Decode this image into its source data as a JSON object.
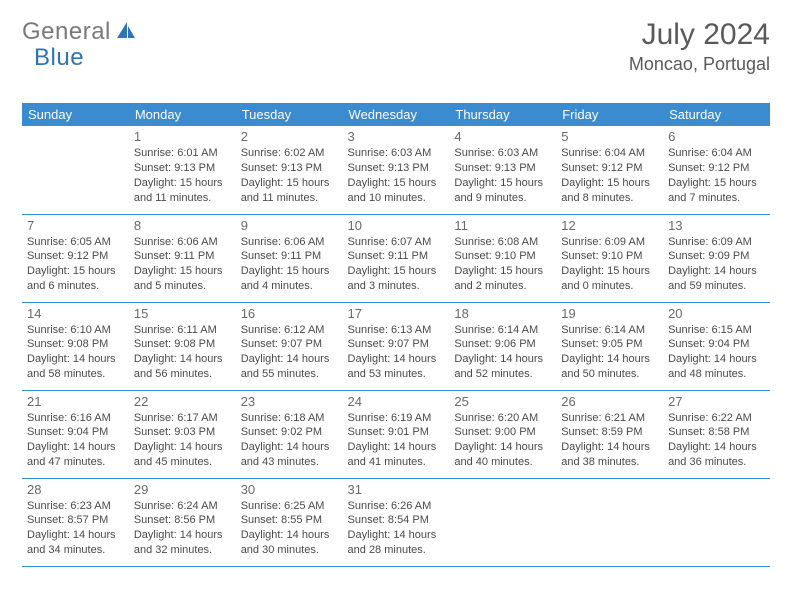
{
  "brand": {
    "part1": "General",
    "part2": "Blue"
  },
  "title": "July 2024",
  "location": "Moncao, Portugal",
  "colors": {
    "header_bg": "#3a8bd0",
    "header_text": "#ffffff",
    "shaded_bg": "#ececec",
    "rule": "#3a8bd0",
    "logo_gray": "#7a7a7a",
    "logo_blue": "#2f75b5"
  },
  "dayHeaders": [
    "Sunday",
    "Monday",
    "Tuesday",
    "Wednesday",
    "Thursday",
    "Friday",
    "Saturday"
  ],
  "weeks": [
    [
      {
        "num": "",
        "sr": "",
        "ss": "",
        "dl1": "",
        "dl2": "",
        "shaded": true
      },
      {
        "num": "1",
        "sr": "Sunrise: 6:01 AM",
        "ss": "Sunset: 9:13 PM",
        "dl1": "Daylight: 15 hours",
        "dl2": "and 11 minutes.",
        "shaded": true
      },
      {
        "num": "2",
        "sr": "Sunrise: 6:02 AM",
        "ss": "Sunset: 9:13 PM",
        "dl1": "Daylight: 15 hours",
        "dl2": "and 11 minutes.",
        "shaded": true
      },
      {
        "num": "3",
        "sr": "Sunrise: 6:03 AM",
        "ss": "Sunset: 9:13 PM",
        "dl1": "Daylight: 15 hours",
        "dl2": "and 10 minutes.",
        "shaded": true
      },
      {
        "num": "4",
        "sr": "Sunrise: 6:03 AM",
        "ss": "Sunset: 9:13 PM",
        "dl1": "Daylight: 15 hours",
        "dl2": "and 9 minutes.",
        "shaded": true
      },
      {
        "num": "5",
        "sr": "Sunrise: 6:04 AM",
        "ss": "Sunset: 9:12 PM",
        "dl1": "Daylight: 15 hours",
        "dl2": "and 8 minutes.",
        "shaded": true
      },
      {
        "num": "6",
        "sr": "Sunrise: 6:04 AM",
        "ss": "Sunset: 9:12 PM",
        "dl1": "Daylight: 15 hours",
        "dl2": "and 7 minutes.",
        "shaded": true
      }
    ],
    [
      {
        "num": "7",
        "sr": "Sunrise: 6:05 AM",
        "ss": "Sunset: 9:12 PM",
        "dl1": "Daylight: 15 hours",
        "dl2": "and 6 minutes.",
        "shaded": false
      },
      {
        "num": "8",
        "sr": "Sunrise: 6:06 AM",
        "ss": "Sunset: 9:11 PM",
        "dl1": "Daylight: 15 hours",
        "dl2": "and 5 minutes.",
        "shaded": false
      },
      {
        "num": "9",
        "sr": "Sunrise: 6:06 AM",
        "ss": "Sunset: 9:11 PM",
        "dl1": "Daylight: 15 hours",
        "dl2": "and 4 minutes.",
        "shaded": false
      },
      {
        "num": "10",
        "sr": "Sunrise: 6:07 AM",
        "ss": "Sunset: 9:11 PM",
        "dl1": "Daylight: 15 hours",
        "dl2": "and 3 minutes.",
        "shaded": false
      },
      {
        "num": "11",
        "sr": "Sunrise: 6:08 AM",
        "ss": "Sunset: 9:10 PM",
        "dl1": "Daylight: 15 hours",
        "dl2": "and 2 minutes.",
        "shaded": false
      },
      {
        "num": "12",
        "sr": "Sunrise: 6:09 AM",
        "ss": "Sunset: 9:10 PM",
        "dl1": "Daylight: 15 hours",
        "dl2": "and 0 minutes.",
        "shaded": false
      },
      {
        "num": "13",
        "sr": "Sunrise: 6:09 AM",
        "ss": "Sunset: 9:09 PM",
        "dl1": "Daylight: 14 hours",
        "dl2": "and 59 minutes.",
        "shaded": false
      }
    ],
    [
      {
        "num": "14",
        "sr": "Sunrise: 6:10 AM",
        "ss": "Sunset: 9:08 PM",
        "dl1": "Daylight: 14 hours",
        "dl2": "and 58 minutes.",
        "shaded": true
      },
      {
        "num": "15",
        "sr": "Sunrise: 6:11 AM",
        "ss": "Sunset: 9:08 PM",
        "dl1": "Daylight: 14 hours",
        "dl2": "and 56 minutes.",
        "shaded": true
      },
      {
        "num": "16",
        "sr": "Sunrise: 6:12 AM",
        "ss": "Sunset: 9:07 PM",
        "dl1": "Daylight: 14 hours",
        "dl2": "and 55 minutes.",
        "shaded": true
      },
      {
        "num": "17",
        "sr": "Sunrise: 6:13 AM",
        "ss": "Sunset: 9:07 PM",
        "dl1": "Daylight: 14 hours",
        "dl2": "and 53 minutes.",
        "shaded": true
      },
      {
        "num": "18",
        "sr": "Sunrise: 6:14 AM",
        "ss": "Sunset: 9:06 PM",
        "dl1": "Daylight: 14 hours",
        "dl2": "and 52 minutes.",
        "shaded": true
      },
      {
        "num": "19",
        "sr": "Sunrise: 6:14 AM",
        "ss": "Sunset: 9:05 PM",
        "dl1": "Daylight: 14 hours",
        "dl2": "and 50 minutes.",
        "shaded": true
      },
      {
        "num": "20",
        "sr": "Sunrise: 6:15 AM",
        "ss": "Sunset: 9:04 PM",
        "dl1": "Daylight: 14 hours",
        "dl2": "and 48 minutes.",
        "shaded": true
      }
    ],
    [
      {
        "num": "21",
        "sr": "Sunrise: 6:16 AM",
        "ss": "Sunset: 9:04 PM",
        "dl1": "Daylight: 14 hours",
        "dl2": "and 47 minutes.",
        "shaded": false
      },
      {
        "num": "22",
        "sr": "Sunrise: 6:17 AM",
        "ss": "Sunset: 9:03 PM",
        "dl1": "Daylight: 14 hours",
        "dl2": "and 45 minutes.",
        "shaded": false
      },
      {
        "num": "23",
        "sr": "Sunrise: 6:18 AM",
        "ss": "Sunset: 9:02 PM",
        "dl1": "Daylight: 14 hours",
        "dl2": "and 43 minutes.",
        "shaded": false
      },
      {
        "num": "24",
        "sr": "Sunrise: 6:19 AM",
        "ss": "Sunset: 9:01 PM",
        "dl1": "Daylight: 14 hours",
        "dl2": "and 41 minutes.",
        "shaded": false
      },
      {
        "num": "25",
        "sr": "Sunrise: 6:20 AM",
        "ss": "Sunset: 9:00 PM",
        "dl1": "Daylight: 14 hours",
        "dl2": "and 40 minutes.",
        "shaded": false
      },
      {
        "num": "26",
        "sr": "Sunrise: 6:21 AM",
        "ss": "Sunset: 8:59 PM",
        "dl1": "Daylight: 14 hours",
        "dl2": "and 38 minutes.",
        "shaded": false
      },
      {
        "num": "27",
        "sr": "Sunrise: 6:22 AM",
        "ss": "Sunset: 8:58 PM",
        "dl1": "Daylight: 14 hours",
        "dl2": "and 36 minutes.",
        "shaded": false
      }
    ],
    [
      {
        "num": "28",
        "sr": "Sunrise: 6:23 AM",
        "ss": "Sunset: 8:57 PM",
        "dl1": "Daylight: 14 hours",
        "dl2": "and 34 minutes.",
        "shaded": true
      },
      {
        "num": "29",
        "sr": "Sunrise: 6:24 AM",
        "ss": "Sunset: 8:56 PM",
        "dl1": "Daylight: 14 hours",
        "dl2": "and 32 minutes.",
        "shaded": true
      },
      {
        "num": "30",
        "sr": "Sunrise: 6:25 AM",
        "ss": "Sunset: 8:55 PM",
        "dl1": "Daylight: 14 hours",
        "dl2": "and 30 minutes.",
        "shaded": true
      },
      {
        "num": "31",
        "sr": "Sunrise: 6:26 AM",
        "ss": "Sunset: 8:54 PM",
        "dl1": "Daylight: 14 hours",
        "dl2": "and 28 minutes.",
        "shaded": true
      },
      {
        "num": "",
        "sr": "",
        "ss": "",
        "dl1": "",
        "dl2": "",
        "shaded": true
      },
      {
        "num": "",
        "sr": "",
        "ss": "",
        "dl1": "",
        "dl2": "",
        "shaded": true
      },
      {
        "num": "",
        "sr": "",
        "ss": "",
        "dl1": "",
        "dl2": "",
        "shaded": true
      }
    ]
  ]
}
